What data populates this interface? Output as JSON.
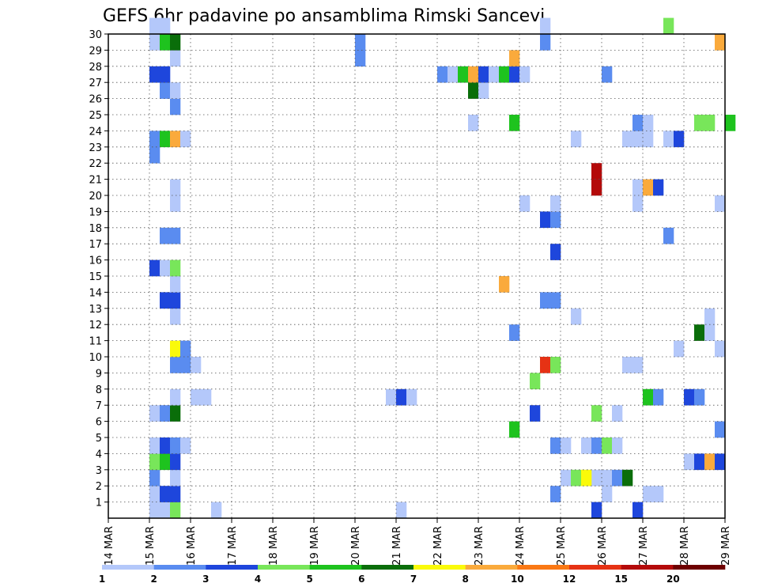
{
  "chart_data": {
    "type": "heatmap",
    "title": "GEFS 6hr padavine po ansamblima Rimski Sancevi",
    "xlabel": "",
    "ylabel": "",
    "x_ticks": [
      "14 MAR",
      "15 MAR",
      "16 MAR",
      "17 MAR",
      "18 MAR",
      "19 MAR",
      "20 MAR",
      "21 MAR",
      "22 MAR",
      "23 MAR",
      "24 MAR",
      "25 MAR",
      "26 MAR",
      "27 MAR",
      "28 MAR",
      "29 MAR"
    ],
    "x_range": [
      "14 MAR 00z",
      "29 MAR 00z"
    ],
    "x_step": "6hr",
    "y_ticks": [
      "1",
      "2",
      "3",
      "4",
      "5",
      "6",
      "7",
      "8",
      "9",
      "10",
      "11",
      "12",
      "13",
      "14",
      "15",
      "16",
      "17",
      "18",
      "19",
      "20",
      "21",
      "22",
      "23",
      "24",
      "25",
      "26",
      "27",
      "28",
      "29",
      "30"
    ],
    "y_range": [
      0,
      30
    ],
    "grid": true,
    "legend": {
      "placement": "bottom",
      "levels": [
        "1",
        "2",
        "3",
        "4",
        "5",
        "6",
        "7",
        "8",
        "10",
        "12",
        "15",
        "20"
      ],
      "colors": [
        "#b4c8fa",
        "#5a8cf0",
        "#1e46dc",
        "#78e65a",
        "#1ec31e",
        "#0a6e0a",
        "#fafa0a",
        "#faaa3c",
        "#fa7814",
        "#e63214",
        "#b40a0a",
        "#6e0000"
      ]
    },
    "cells": [
      {
        "day": 15,
        "slot": 0,
        "member": 0,
        "level": 1
      },
      {
        "day": 15,
        "slot": 1,
        "member": 0,
        "level": 1
      },
      {
        "day": 15,
        "slot": 2,
        "member": 0,
        "level": 4
      },
      {
        "day": 21,
        "slot": 0,
        "member": 0,
        "level": 1
      },
      {
        "day": 25,
        "slot": 3,
        "member": 0,
        "level": 3
      },
      {
        "day": 26,
        "slot": 3,
        "member": 0,
        "level": 3
      },
      {
        "day": 16,
        "slot": 2,
        "member": 0,
        "level": 1
      },
      {
        "day": 15,
        "slot": 0,
        "member": 1,
        "level": 1
      },
      {
        "day": 15,
        "slot": 1,
        "member": 1,
        "level": 3
      },
      {
        "day": 15,
        "slot": 2,
        "member": 1,
        "level": 3
      },
      {
        "day": 24,
        "slot": 3,
        "member": 1,
        "level": 2
      },
      {
        "day": 26,
        "slot": 0,
        "member": 1,
        "level": 1
      },
      {
        "day": 27,
        "slot": 1,
        "member": 1,
        "level": 1
      },
      {
        "day": 27,
        "slot": 0,
        "member": 1,
        "level": 1
      },
      {
        "day": 15,
        "slot": 0,
        "member": 2,
        "level": 2
      },
      {
        "day": 15,
        "slot": 2,
        "member": 2,
        "level": 1
      },
      {
        "day": 25,
        "slot": 3,
        "member": 2,
        "level": 1
      },
      {
        "day": 25,
        "slot": 0,
        "member": 2,
        "level": 1
      },
      {
        "day": 25,
        "slot": 1,
        "member": 2,
        "level": 4
      },
      {
        "day": 25,
        "slot": 2,
        "member": 2,
        "level": 7
      },
      {
        "day": 26,
        "slot": 0,
        "member": 2,
        "level": 1
      },
      {
        "day": 26,
        "slot": 1,
        "member": 2,
        "level": 2
      },
      {
        "day": 26,
        "slot": 2,
        "member": 2,
        "level": 6
      },
      {
        "day": 15,
        "slot": 0,
        "member": 3,
        "level": 4
      },
      {
        "day": 15,
        "slot": 1,
        "member": 3,
        "level": 5
      },
      {
        "day": 15,
        "slot": 2,
        "member": 3,
        "level": 3
      },
      {
        "day": 28,
        "slot": 0,
        "member": 3,
        "level": 1
      },
      {
        "day": 28,
        "slot": 1,
        "member": 3,
        "level": 3
      },
      {
        "day": 28,
        "slot": 2,
        "member": 3,
        "level": 8
      },
      {
        "day": 28,
        "slot": 3,
        "member": 3,
        "level": 3
      },
      {
        "day": 15,
        "slot": 0,
        "member": 4,
        "level": 1
      },
      {
        "day": 15,
        "slot": 1,
        "member": 4,
        "level": 3
      },
      {
        "day": 15,
        "slot": 2,
        "member": 4,
        "level": 2
      },
      {
        "day": 15,
        "slot": 3,
        "member": 4,
        "level": 1
      },
      {
        "day": 24,
        "slot": 3,
        "member": 4,
        "level": 2
      },
      {
        "day": 25,
        "slot": 0,
        "member": 4,
        "level": 1
      },
      {
        "day": 25,
        "slot": 2,
        "member": 4,
        "level": 1
      },
      {
        "day": 25,
        "slot": 3,
        "member": 4,
        "level": 2
      },
      {
        "day": 26,
        "slot": 0,
        "member": 4,
        "level": 4
      },
      {
        "day": 26,
        "slot": 1,
        "member": 4,
        "level": 1
      },
      {
        "day": 23,
        "slot": 3,
        "member": 5,
        "level": 5
      },
      {
        "day": 28,
        "slot": 3,
        "member": 5,
        "level": 2
      },
      {
        "day": 15,
        "slot": 0,
        "member": 6,
        "level": 1
      },
      {
        "day": 15,
        "slot": 1,
        "member": 6,
        "level": 2
      },
      {
        "day": 15,
        "slot": 2,
        "member": 6,
        "level": 6
      },
      {
        "day": 24,
        "slot": 1,
        "member": 6,
        "level": 3
      },
      {
        "day": 25,
        "slot": 3,
        "member": 6,
        "level": 4
      },
      {
        "day": 26,
        "slot": 1,
        "member": 6,
        "level": 1
      },
      {
        "day": 15,
        "slot": 2,
        "member": 7,
        "level": 1
      },
      {
        "day": 16,
        "slot": 0,
        "member": 7,
        "level": 1
      },
      {
        "day": 16,
        "slot": 1,
        "member": 7,
        "level": 1
      },
      {
        "day": 20,
        "slot": 3,
        "member": 7,
        "level": 1
      },
      {
        "day": 21,
        "slot": 0,
        "member": 7,
        "level": 3
      },
      {
        "day": 21,
        "slot": 1,
        "member": 7,
        "level": 1
      },
      {
        "day": 27,
        "slot": 0,
        "member": 7,
        "level": 5
      },
      {
        "day": 27,
        "slot": 1,
        "member": 7,
        "level": 2
      },
      {
        "day": 28,
        "slot": 0,
        "member": 7,
        "level": 3
      },
      {
        "day": 28,
        "slot": 1,
        "member": 7,
        "level": 2
      },
      {
        "day": 24,
        "slot": 1,
        "member": 8,
        "level": 4
      },
      {
        "day": 15,
        "slot": 2,
        "member": 9,
        "level": 2
      },
      {
        "day": 15,
        "slot": 3,
        "member": 9,
        "level": 2
      },
      {
        "day": 16,
        "slot": 0,
        "member": 9,
        "level": 1
      },
      {
        "day": 24,
        "slot": 2,
        "member": 9,
        "level": 10
      },
      {
        "day": 24,
        "slot": 3,
        "member": 9,
        "level": 4
      },
      {
        "day": 26,
        "slot": 2,
        "member": 9,
        "level": 1
      },
      {
        "day": 26,
        "slot": 3,
        "member": 9,
        "level": 1
      },
      {
        "day": 15,
        "slot": 2,
        "member": 10,
        "level": 7
      },
      {
        "day": 15,
        "slot": 3,
        "member": 10,
        "level": 2
      },
      {
        "day": 27,
        "slot": 3,
        "member": 10,
        "level": 1
      },
      {
        "day": 28,
        "slot": 3,
        "member": 10,
        "level": 1
      },
      {
        "day": 23,
        "slot": 3,
        "member": 11,
        "level": 2
      },
      {
        "day": 28,
        "slot": 1,
        "member": 11,
        "level": 6
      },
      {
        "day": 28,
        "slot": 2,
        "member": 11,
        "level": 1
      },
      {
        "day": 15,
        "slot": 2,
        "member": 12,
        "level": 1
      },
      {
        "day": 25,
        "slot": 1,
        "member": 12,
        "level": 1
      },
      {
        "day": 28,
        "slot": 2,
        "member": 12,
        "level": 1
      },
      {
        "day": 15,
        "slot": 1,
        "member": 13,
        "level": 3
      },
      {
        "day": 15,
        "slot": 2,
        "member": 13,
        "level": 3
      },
      {
        "day": 24,
        "slot": 2,
        "member": 13,
        "level": 2
      },
      {
        "day": 24,
        "slot": 3,
        "member": 13,
        "level": 2
      },
      {
        "day": 15,
        "slot": 2,
        "member": 14,
        "level": 1
      },
      {
        "day": 23,
        "slot": 2,
        "member": 14,
        "level": 8
      },
      {
        "day": 15,
        "slot": 0,
        "member": 15,
        "level": 3
      },
      {
        "day": 15,
        "slot": 1,
        "member": 15,
        "level": 1
      },
      {
        "day": 15,
        "slot": 2,
        "member": 15,
        "level": 4
      },
      {
        "day": 24,
        "slot": 3,
        "member": 16,
        "level": 3
      },
      {
        "day": 15,
        "slot": 1,
        "member": 17,
        "level": 2
      },
      {
        "day": 15,
        "slot": 2,
        "member": 17,
        "level": 2
      },
      {
        "day": 27,
        "slot": 2,
        "member": 17,
        "level": 2
      },
      {
        "day": 24,
        "slot": 2,
        "member": 18,
        "level": 3
      },
      {
        "day": 24,
        "slot": 3,
        "member": 18,
        "level": 2
      },
      {
        "day": 15,
        "slot": 2,
        "member": 19,
        "level": 1
      },
      {
        "day": 24,
        "slot": 0,
        "member": 19,
        "level": 1
      },
      {
        "day": 24,
        "slot": 3,
        "member": 19,
        "level": 1
      },
      {
        "day": 26,
        "slot": 3,
        "member": 19,
        "level": 1
      },
      {
        "day": 28,
        "slot": 3,
        "member": 19,
        "level": 1
      },
      {
        "day": 15,
        "slot": 2,
        "member": 20,
        "level": 1
      },
      {
        "day": 25,
        "slot": 3,
        "member": 20,
        "level": 11
      },
      {
        "day": 26,
        "slot": 3,
        "member": 20,
        "level": 1
      },
      {
        "day": 27,
        "slot": 0,
        "member": 20,
        "level": 8
      },
      {
        "day": 27,
        "slot": 1,
        "member": 20,
        "level": 3
      },
      {
        "day": 25,
        "slot": 3,
        "member": 21,
        "level": 11
      },
      {
        "day": 15,
        "slot": 0,
        "member": 22,
        "level": 2
      },
      {
        "day": 15,
        "slot": 0,
        "member": 23,
        "level": 2
      },
      {
        "day": 15,
        "slot": 1,
        "member": 23,
        "level": 5
      },
      {
        "day": 15,
        "slot": 2,
        "member": 23,
        "level": 8
      },
      {
        "day": 15,
        "slot": 3,
        "member": 23,
        "level": 1
      },
      {
        "day": 25,
        "slot": 1,
        "member": 23,
        "level": 1
      },
      {
        "day": 26,
        "slot": 2,
        "member": 23,
        "level": 1
      },
      {
        "day": 26,
        "slot": 3,
        "member": 23,
        "level": 1
      },
      {
        "day": 27,
        "slot": 0,
        "member": 23,
        "level": 1
      },
      {
        "day": 27,
        "slot": 2,
        "member": 23,
        "level": 1
      },
      {
        "day": 27,
        "slot": 3,
        "member": 23,
        "level": 3
      },
      {
        "day": 22,
        "slot": 3,
        "member": 24,
        "level": 1
      },
      {
        "day": 23,
        "slot": 3,
        "member": 24,
        "level": 5
      },
      {
        "day": 26,
        "slot": 3,
        "member": 24,
        "level": 2
      },
      {
        "day": 27,
        "slot": 0,
        "member": 24,
        "level": 1
      },
      {
        "day": 28,
        "slot": 1,
        "member": 24,
        "level": 4
      },
      {
        "day": 28,
        "slot": 2,
        "member": 24,
        "level": 4
      },
      {
        "day": 29,
        "slot": 0,
        "member": 24,
        "level": 5
      },
      {
        "day": 15,
        "slot": 2,
        "member": 25,
        "level": 2
      },
      {
        "day": 15,
        "slot": 1,
        "member": 26,
        "level": 2
      },
      {
        "day": 15,
        "slot": 2,
        "member": 26,
        "level": 1
      },
      {
        "day": 22,
        "slot": 3,
        "member": 26,
        "level": 6
      },
      {
        "day": 23,
        "slot": 0,
        "member": 26,
        "level": 1
      },
      {
        "day": 15,
        "slot": 0,
        "member": 27,
        "level": 3
      },
      {
        "day": 15,
        "slot": 1,
        "member": 27,
        "level": 3
      },
      {
        "day": 22,
        "slot": 0,
        "member": 27,
        "level": 2
      },
      {
        "day": 22,
        "slot": 1,
        "member": 27,
        "level": 1
      },
      {
        "day": 22,
        "slot": 2,
        "member": 27,
        "level": 5
      },
      {
        "day": 22,
        "slot": 3,
        "member": 27,
        "level": 8
      },
      {
        "day": 23,
        "slot": 0,
        "member": 27,
        "level": 3
      },
      {
        "day": 23,
        "slot": 1,
        "member": 27,
        "level": 1
      },
      {
        "day": 23,
        "slot": 2,
        "member": 27,
        "level": 5
      },
      {
        "day": 23,
        "slot": 3,
        "member": 27,
        "level": 3
      },
      {
        "day": 24,
        "slot": 0,
        "member": 27,
        "level": 1
      },
      {
        "day": 26,
        "slot": 0,
        "member": 27,
        "level": 2
      },
      {
        "day": 15,
        "slot": 2,
        "member": 28,
        "level": 1
      },
      {
        "day": 20,
        "slot": 0,
        "member": 28,
        "level": 2
      },
      {
        "day": 23,
        "slot": 3,
        "member": 28,
        "level": 8
      },
      {
        "day": 15,
        "slot": 0,
        "member": 29,
        "level": 1
      },
      {
        "day": 15,
        "slot": 1,
        "member": 29,
        "level": 5
      },
      {
        "day": 15,
        "slot": 2,
        "member": 29,
        "level": 6
      },
      {
        "day": 20,
        "slot": 0,
        "member": 29,
        "level": 2
      },
      {
        "day": 24,
        "slot": 2,
        "member": 29,
        "level": 2
      },
      {
        "day": 28,
        "slot": 3,
        "member": 29,
        "level": 8
      },
      {
        "day": 15,
        "slot": 0,
        "member": 30,
        "level": 1
      },
      {
        "day": 15,
        "slot": 1,
        "member": 30,
        "level": 1
      },
      {
        "day": 24,
        "slot": 2,
        "member": 30,
        "level": 1
      },
      {
        "day": 27,
        "slot": 2,
        "member": 30,
        "level": 4
      }
    ]
  }
}
